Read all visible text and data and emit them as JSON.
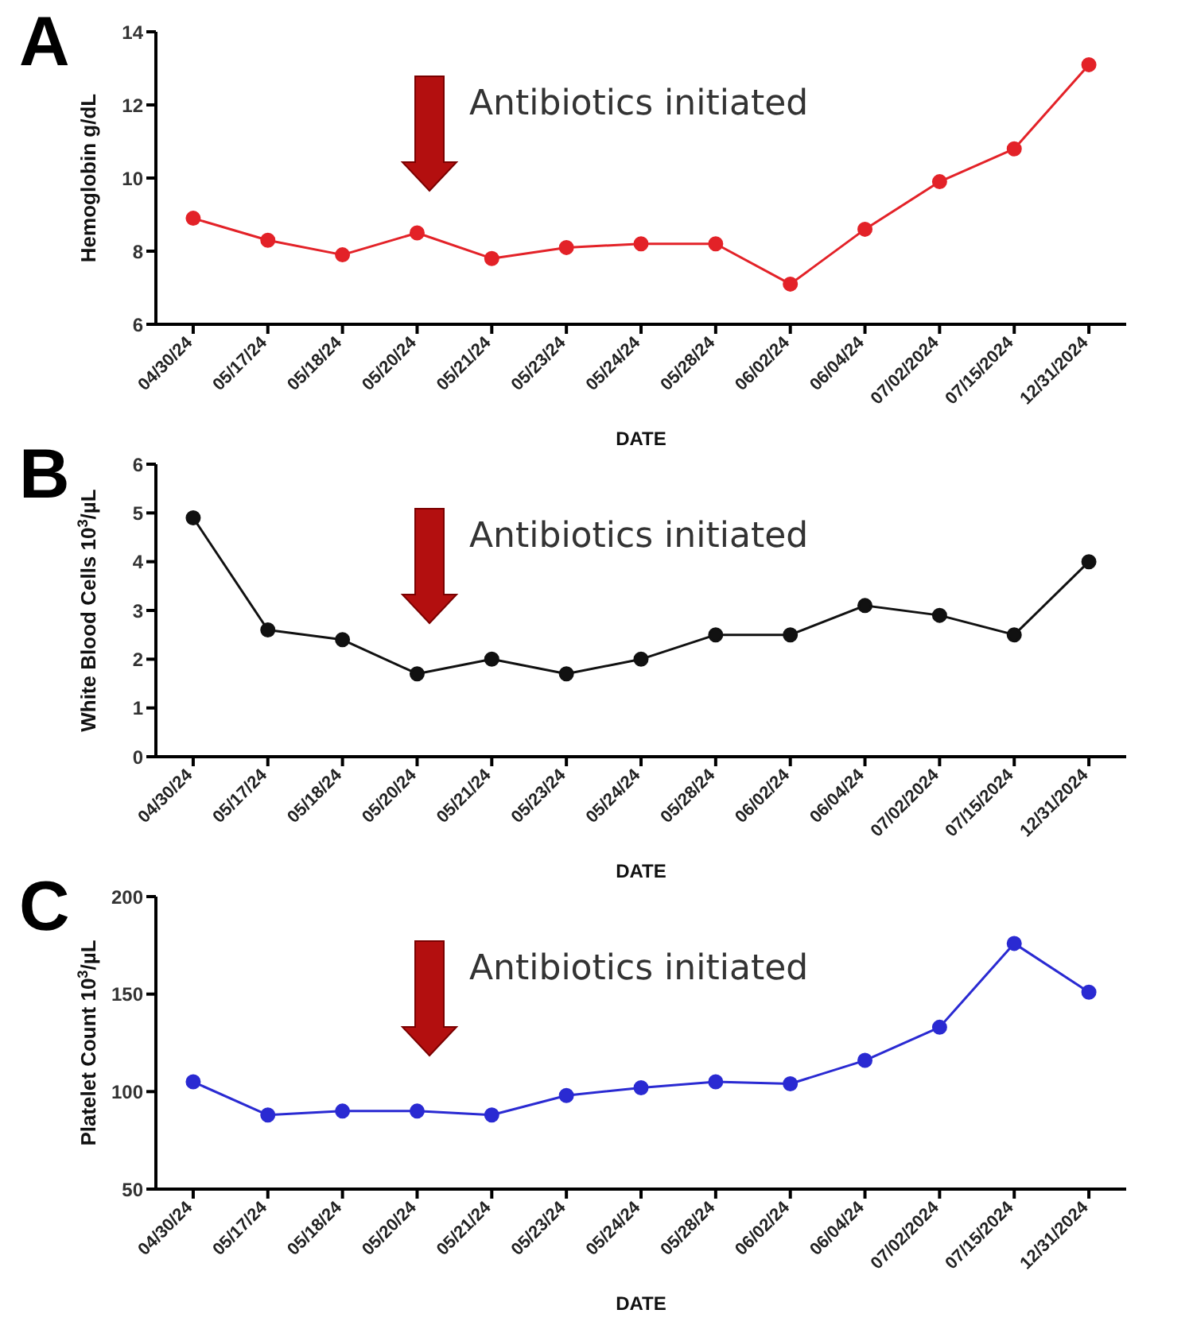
{
  "chart_data": [
    {
      "type": "line",
      "title": "A",
      "xlabel": "DATE",
      "ylabel": "Hemoglobin g/dL",
      "categories": [
        "04/30/24",
        "05/17/24",
        "05/18/24",
        "05/20/24",
        "05/21/24",
        "05/23/24",
        "05/24/24",
        "05/28/24",
        "06/02/24",
        "06/04/24",
        "07/02/2024",
        "07/15/2024",
        "12/31/2024"
      ],
      "series": [
        {
          "color": "#e32228",
          "values": [
            8.9,
            8.3,
            7.9,
            8.5,
            7.8,
            8.1,
            8.2,
            8.2,
            7.1,
            8.6,
            9.9,
            10.8,
            13.1
          ]
        }
      ],
      "ylim": [
        6,
        14
      ],
      "yticks": [
        6,
        8,
        10,
        12,
        14
      ],
      "marker": "circle",
      "annotations": [
        "Antibiotics initiated"
      ]
    },
    {
      "type": "line",
      "title": "B",
      "xlabel": "DATE",
      "ylabel": "White Blood Cells 10$^{3}$/µL",
      "categories": [
        "04/30/24",
        "05/17/24",
        "05/18/24",
        "05/20/24",
        "05/21/24",
        "05/23/24",
        "05/24/24",
        "05/28/24",
        "06/02/24",
        "06/04/24",
        "07/02/2024",
        "07/15/2024",
        "12/31/2024"
      ],
      "series": [
        {
          "color": "#111111",
          "values": [
            4.9,
            2.6,
            2.4,
            1.7,
            2.0,
            1.7,
            2.0,
            2.5,
            2.5,
            3.1,
            2.9,
            2.5,
            4.0
          ]
        }
      ],
      "ylim": [
        0,
        6
      ],
      "yticks": [
        0,
        1,
        2,
        3,
        4,
        5,
        6
      ],
      "marker": "circle",
      "annotations": [
        "Antibiotics initiated"
      ]
    },
    {
      "type": "line",
      "title": "C",
      "xlabel": "DATE",
      "ylabel": "Platelet Count 10$^{3}$/µL",
      "categories": [
        "04/30/24",
        "05/17/24",
        "05/18/24",
        "05/20/24",
        "05/21/24",
        "05/23/24",
        "05/24/24",
        "05/28/24",
        "06/02/24",
        "06/04/24",
        "07/02/2024",
        "07/15/2024",
        "12/31/2024"
      ],
      "series": [
        {
          "color": "#2a2ad2",
          "values": [
            105,
            88,
            90,
            90,
            88,
            98,
            102,
            105,
            104,
            116,
            133,
            176,
            151
          ]
        }
      ],
      "ylim": [
        50,
        200
      ],
      "yticks": [
        50,
        100,
        150,
        200
      ],
      "marker": "circle",
      "annotations": [
        "Antibiotics initiated"
      ]
    }
  ]
}
